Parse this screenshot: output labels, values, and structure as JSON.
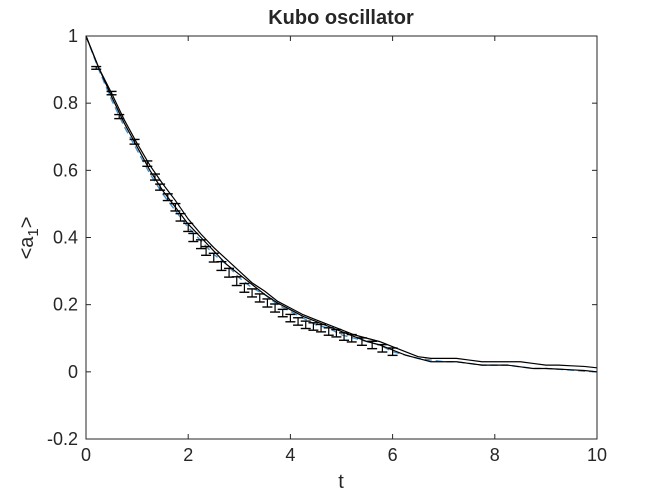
{
  "chart_data": {
    "type": "line",
    "title": "Kubo oscillator",
    "xlabel": "t",
    "ylabel": "<a",
    "ylabel_subscript": "1",
    "ylabel_suffix": ">",
    "xlim": [
      0,
      10
    ],
    "ylim": [
      -0.2,
      1
    ],
    "xticks": [
      0,
      2,
      4,
      6,
      8,
      10
    ],
    "xtick_labels": [
      "0",
      "2",
      "4",
      "6",
      "8",
      "10"
    ],
    "yticks": [
      -0.2,
      0,
      0.2,
      0.4,
      0.6,
      0.8,
      1
    ],
    "ytick_labels": [
      "-0.2",
      "0",
      "0.2",
      "0.4",
      "0.6",
      "0.8",
      "1"
    ],
    "grid": false,
    "legend": "none",
    "series": [
      {
        "style": "dashed",
        "color": "#4a90c4",
        "x": [
          0,
          0.25,
          0.5,
          0.75,
          1,
          1.25,
          1.5,
          1.75,
          2,
          2.25,
          2.5,
          2.75,
          3,
          3.25,
          3.5,
          3.75,
          4,
          4.25,
          4.5,
          4.75,
          5,
          5.25,
          5.5,
          5.75,
          6,
          6.25,
          6.5,
          6.75,
          7,
          7.25,
          7.5,
          7.75,
          8,
          8.25,
          8.5,
          8.75,
          9,
          9.25,
          9.5,
          9.75,
          10
        ],
        "y": [
          1.0,
          0.9,
          0.81,
          0.73,
          0.66,
          0.59,
          0.53,
          0.48,
          0.43,
          0.39,
          0.35,
          0.32,
          0.28,
          0.25,
          0.23,
          0.2,
          0.18,
          0.16,
          0.14,
          0.13,
          0.11,
          0.1,
          0.09,
          0.08,
          0.06,
          0.05,
          0.04,
          0.035,
          0.03,
          0.03,
          0.025,
          0.02,
          0.02,
          0.02,
          0.015,
          0.01,
          0.01,
          0.008,
          0.005,
          0.002,
          0.0
        ]
      },
      {
        "style": "solid",
        "color": "#000000",
        "x": [
          0,
          0.25,
          0.5,
          0.75,
          1,
          1.25,
          1.5,
          1.75,
          2,
          2.25,
          2.5,
          2.75,
          3,
          3.25,
          3.5,
          3.75,
          4,
          4.25,
          4.5,
          4.75,
          5,
          5.25,
          5.5,
          5.75,
          6,
          6.25,
          6.5,
          6.75,
          7,
          7.25,
          7.5,
          7.75,
          8,
          8.25,
          8.5,
          8.75,
          9,
          9.25,
          9.5,
          9.75,
          10
        ],
        "y": [
          1.0,
          0.905,
          0.83,
          0.75,
          0.68,
          0.615,
          0.56,
          0.51,
          0.455,
          0.41,
          0.37,
          0.335,
          0.3,
          0.265,
          0.24,
          0.21,
          0.19,
          0.17,
          0.155,
          0.14,
          0.125,
          0.11,
          0.1,
          0.09,
          0.075,
          0.06,
          0.045,
          0.04,
          0.04,
          0.04,
          0.035,
          0.03,
          0.03,
          0.03,
          0.03,
          0.025,
          0.02,
          0.02,
          0.018,
          0.016,
          0.012
        ]
      },
      {
        "style": "solid",
        "color": "#000000",
        "x": [
          0,
          0.25,
          0.5,
          0.75,
          1,
          1.25,
          1.5,
          1.75,
          2,
          2.25,
          2.5,
          2.75,
          3,
          3.25,
          3.5,
          3.75,
          4,
          4.25,
          4.5,
          4.75,
          5,
          5.25,
          5.5,
          5.75,
          6,
          6.25,
          6.5,
          6.75,
          7,
          7.25,
          7.5,
          7.75,
          8,
          8.25,
          8.5,
          8.75,
          9,
          9.25,
          9.5,
          9.75,
          10
        ],
        "y": [
          1.0,
          0.905,
          0.82,
          0.74,
          0.67,
          0.6,
          0.54,
          0.49,
          0.44,
          0.4,
          0.36,
          0.32,
          0.29,
          0.26,
          0.23,
          0.205,
          0.185,
          0.165,
          0.15,
          0.135,
          0.12,
          0.105,
          0.09,
          0.08,
          0.065,
          0.05,
          0.04,
          0.03,
          0.03,
          0.03,
          0.025,
          0.02,
          0.02,
          0.02,
          0.015,
          0.01,
          0.01,
          0.008,
          0.006,
          0.004,
          0.0
        ]
      }
    ],
    "error_bars": {
      "x": [
        0.2,
        0.5,
        0.65,
        0.95,
        1.2,
        1.35,
        1.45,
        1.6,
        1.75,
        1.85,
        2.0,
        2.1,
        2.25,
        2.35,
        2.5,
        2.65,
        2.8,
        2.95,
        3.1,
        3.25,
        3.4,
        3.55,
        3.7,
        3.85,
        4.0,
        4.15,
        4.3,
        4.45,
        4.6,
        4.75,
        4.9,
        5.05,
        5.2,
        5.4,
        5.6,
        5.8,
        6.0
      ],
      "y": [
        0.905,
        0.83,
        0.76,
        0.685,
        0.62,
        0.58,
        0.55,
        0.52,
        0.49,
        0.46,
        0.43,
        0.4,
        0.38,
        0.36,
        0.34,
        0.315,
        0.295,
        0.27,
        0.25,
        0.235,
        0.22,
        0.205,
        0.19,
        0.175,
        0.16,
        0.15,
        0.14,
        0.135,
        0.13,
        0.12,
        0.115,
        0.105,
        0.1,
        0.09,
        0.08,
        0.07,
        0.06
      ],
      "err": [
        0.004,
        0.005,
        0.006,
        0.007,
        0.008,
        0.009,
        0.009,
        0.01,
        0.011,
        0.011,
        0.012,
        0.012,
        0.013,
        0.013,
        0.013,
        0.013,
        0.013,
        0.013,
        0.013,
        0.012,
        0.012,
        0.012,
        0.012,
        0.011,
        0.011,
        0.011,
        0.011,
        0.011,
        0.011,
        0.011,
        0.011,
        0.011,
        0.011,
        0.011,
        0.011,
        0.011,
        0.011
      ]
    }
  }
}
